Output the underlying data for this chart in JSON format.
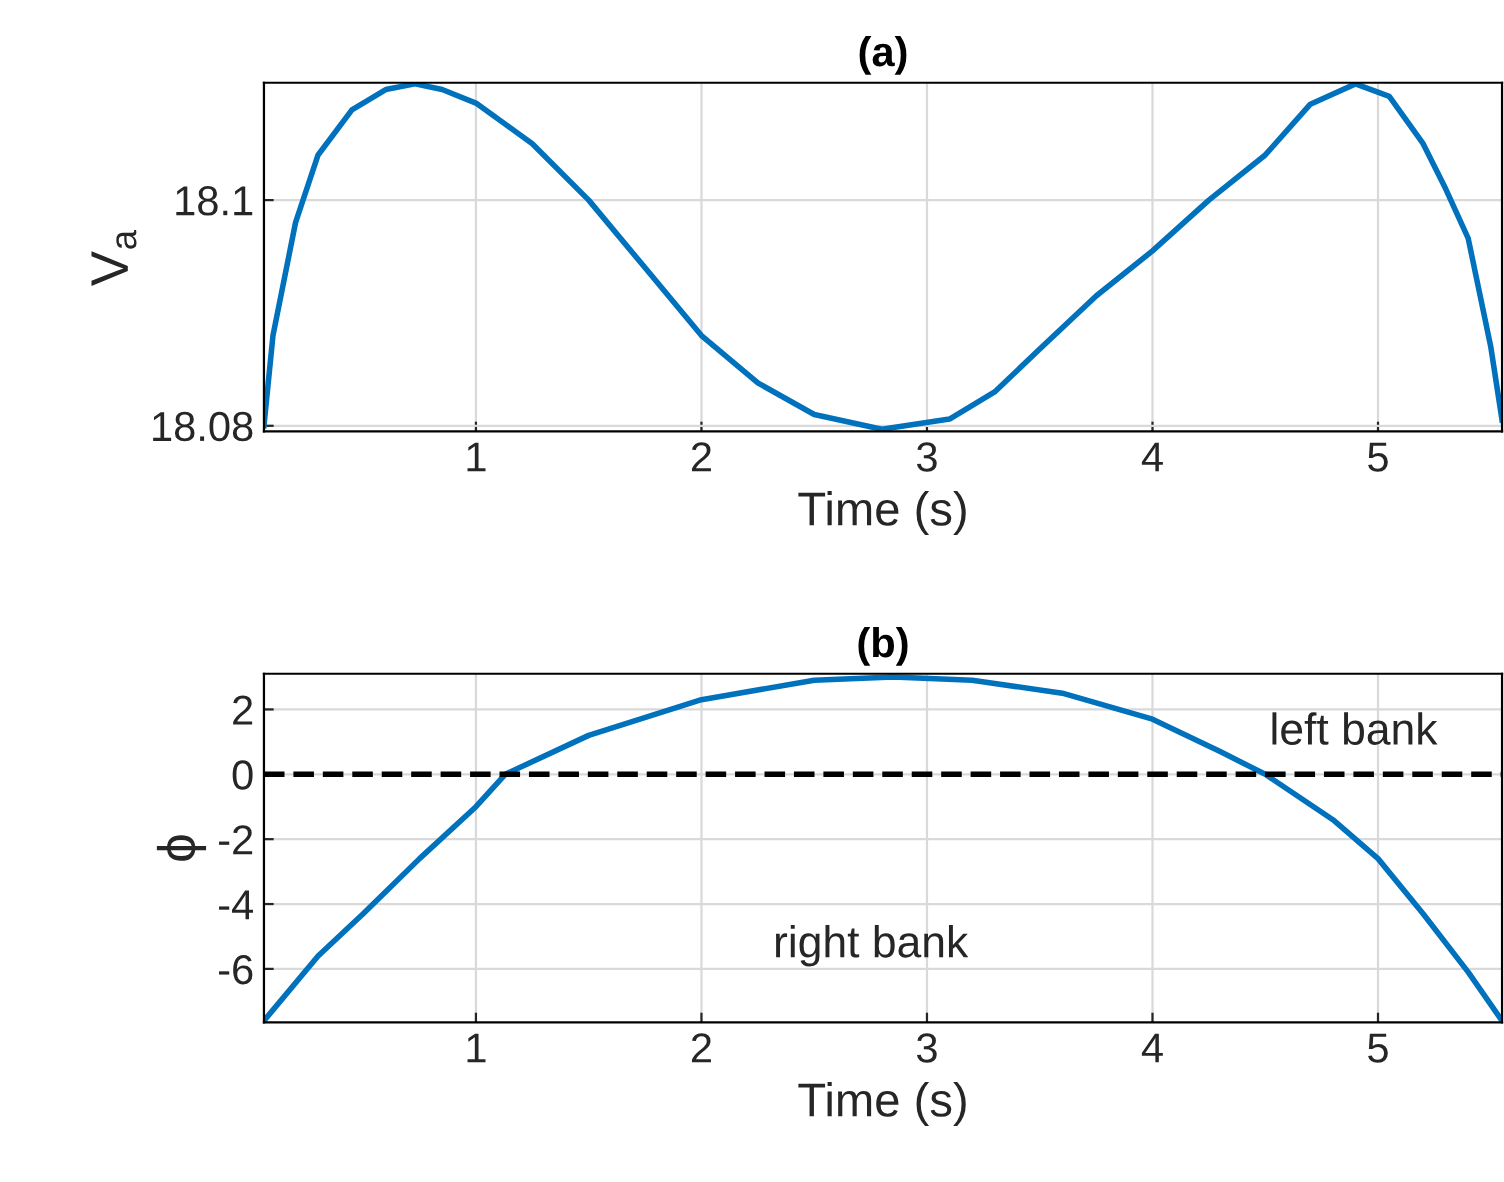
{
  "chart_data": [
    {
      "type": "line",
      "title": "(a)",
      "xlabel": "Time (s)",
      "ylabel": "V$_{a}$",
      "color": "#0072bd",
      "grid": true,
      "x": [
        0.06,
        0.1,
        0.2,
        0.3,
        0.45,
        0.6,
        0.73,
        0.85,
        1.0,
        1.25,
        1.5,
        1.75,
        2.0,
        2.25,
        2.5,
        2.8,
        3.1,
        3.3,
        3.5,
        3.75,
        4.0,
        4.25,
        4.5,
        4.7,
        4.9,
        5.05,
        5.2,
        5.3,
        5.4,
        5.5,
        5.55
      ],
      "values": [
        18.08,
        18.088,
        18.098,
        18.104,
        18.108,
        18.1098,
        18.1103,
        18.1098,
        18.1086,
        18.105,
        18.1,
        18.094,
        18.088,
        18.0838,
        18.081,
        18.0797,
        18.0806,
        18.083,
        18.0868,
        18.0915,
        18.0955,
        18.1,
        18.104,
        18.1085,
        18.1103,
        18.1092,
        18.105,
        18.101,
        18.0966,
        18.087,
        18.0805
      ],
      "xlim": [
        0.06,
        5.55
      ],
      "xticks": [
        1,
        2,
        3,
        4,
        5
      ],
      "ylim": [
        18.0795,
        18.1104
      ],
      "yticks": [
        18.08,
        18.1
      ]
    },
    {
      "type": "line",
      "title": "(b)",
      "xlabel": "Time (s)",
      "ylabel": "ϕ",
      "color": "#0072bd",
      "grid": true,
      "x": [
        0.06,
        0.3,
        0.5,
        0.75,
        1.0,
        1.13,
        1.5,
        2.0,
        2.5,
        2.85,
        3.2,
        3.6,
        4.0,
        4.3,
        4.5,
        4.8,
        5.0,
        5.2,
        5.4,
        5.55
      ],
      "values": [
        -7.6,
        -5.6,
        -4.3,
        -2.6,
        -1.0,
        0,
        1.2,
        2.3,
        2.9,
        3.0,
        2.9,
        2.5,
        1.7,
        0.7,
        0,
        -1.4,
        -2.6,
        -4.3,
        -6.1,
        -7.6
      ],
      "xlim": [
        0.06,
        5.55
      ],
      "xticks": [
        1,
        2,
        3,
        4,
        5
      ],
      "ylim": [
        -7.65,
        3.1
      ],
      "yticks": [
        -6,
        -4,
        -2,
        0,
        2
      ],
      "ref_lines": [
        {
          "axis": "y",
          "value": 0,
          "color": "#000000",
          "line_style": "dashed"
        }
      ],
      "annotations": [
        "left bank",
        "right bank"
      ]
    }
  ]
}
